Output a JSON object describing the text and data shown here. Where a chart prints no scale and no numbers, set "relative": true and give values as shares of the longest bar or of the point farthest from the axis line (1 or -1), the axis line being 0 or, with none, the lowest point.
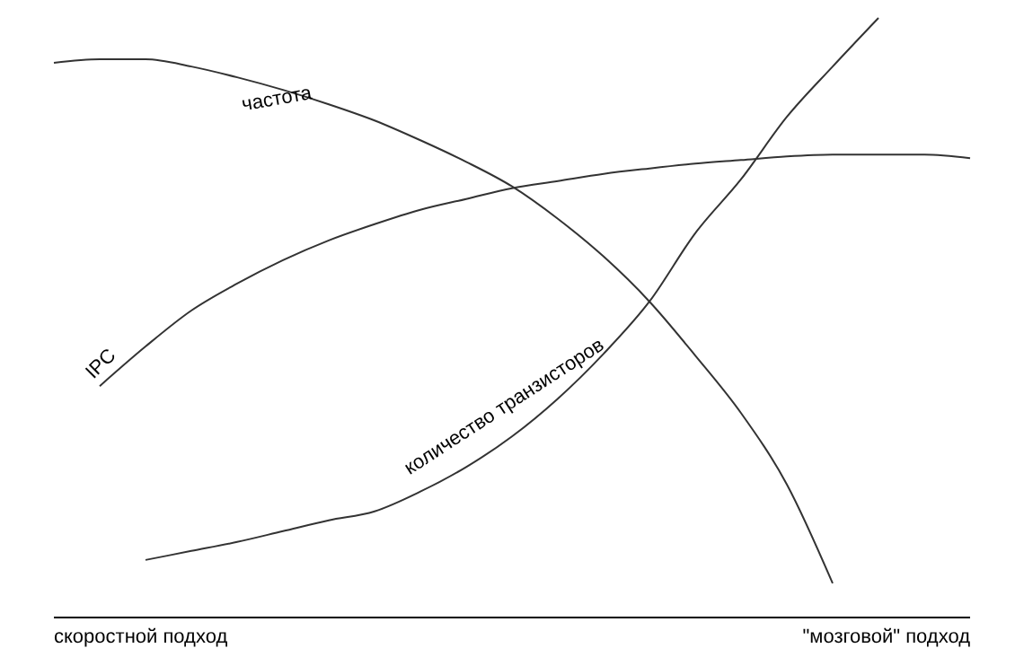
{
  "chart_data": {
    "type": "line",
    "relative": true,
    "categories": [
      null,
      null,
      null,
      null,
      null,
      null,
      null,
      null,
      null,
      null,
      null,
      null,
      null,
      null,
      null,
      null,
      null,
      null,
      null,
      null,
      null
    ],
    "series": [
      {
        "name": "частота",
        "color": "#333333",
        "values": [
          0.925,
          0.931,
          0.931,
          0.919,
          0.901,
          0.88,
          0.856,
          0.829,
          0.796,
          0.76,
          0.719,
          0.665,
          0.602,
          0.527,
          0.437,
          0.341,
          0.222,
          0.057,
          null,
          null,
          null
        ]
      },
      {
        "name": "IPC",
        "color": "#333333",
        "values": [
          null,
          0.386,
          0.452,
          0.512,
          0.557,
          0.596,
          0.629,
          0.656,
          0.68,
          0.698,
          0.716,
          0.728,
          0.74,
          0.749,
          0.757,
          0.763,
          0.769,
          0.772,
          0.772,
          0.772,
          0.766
        ]
      },
      {
        "name": "количество транзисторов",
        "color": "#333333",
        "values": [
          null,
          null,
          0.096,
          0.111,
          0.126,
          0.144,
          0.162,
          0.177,
          0.21,
          0.251,
          0.302,
          0.365,
          0.44,
          0.527,
          0.641,
          0.731,
          0.835,
          0.919,
          1,
          null,
          null
        ]
      }
    ],
    "annotations": [
      "скоростной подход",
      "\"мозговой\" подход"
    ]
  }
}
